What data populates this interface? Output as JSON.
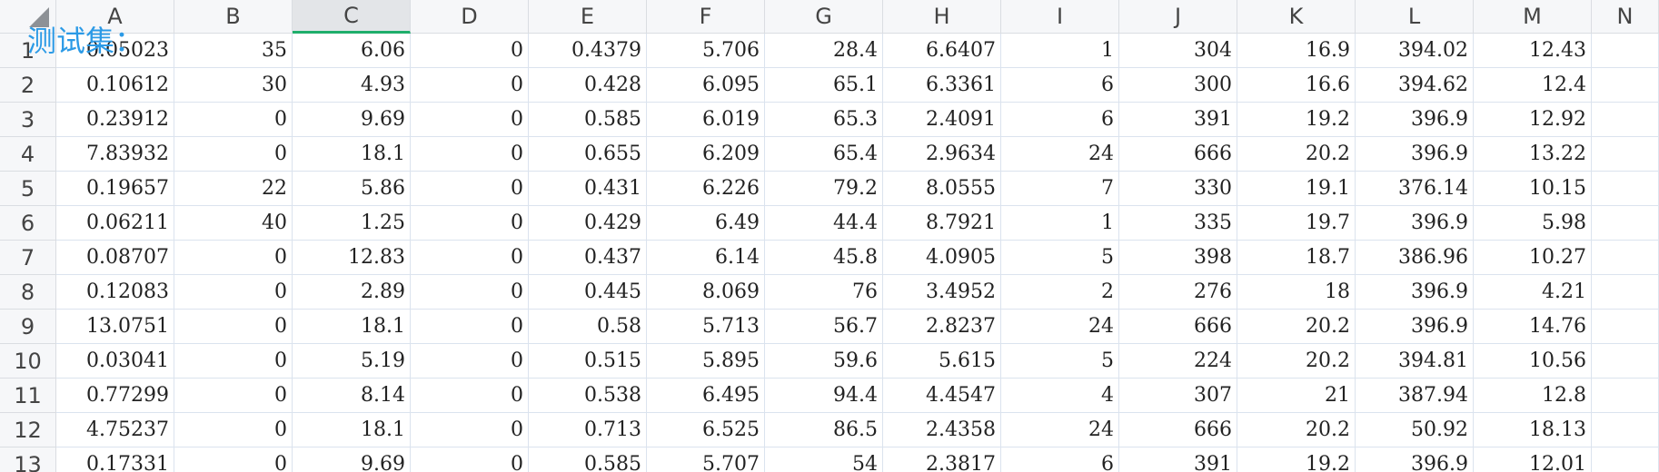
{
  "overlay_title": "测试集：",
  "columns": [
    "A",
    "B",
    "C",
    "D",
    "E",
    "F",
    "G",
    "H",
    "I",
    "J",
    "K",
    "L",
    "M",
    "N"
  ],
  "selected_column": "C",
  "rows": [
    {
      "row": "1",
      "cells": [
        "0.05023",
        "35",
        "6.06",
        "0",
        "0.4379",
        "5.706",
        "28.4",
        "6.6407",
        "1",
        "304",
        "16.9",
        "394.02",
        "12.43",
        ""
      ]
    },
    {
      "row": "2",
      "cells": [
        "0.10612",
        "30",
        "4.93",
        "0",
        "0.428",
        "6.095",
        "65.1",
        "6.3361",
        "6",
        "300",
        "16.6",
        "394.62",
        "12.4",
        ""
      ]
    },
    {
      "row": "3",
      "cells": [
        "0.23912",
        "0",
        "9.69",
        "0",
        "0.585",
        "6.019",
        "65.3",
        "2.4091",
        "6",
        "391",
        "19.2",
        "396.9",
        "12.92",
        ""
      ]
    },
    {
      "row": "4",
      "cells": [
        "7.83932",
        "0",
        "18.1",
        "0",
        "0.655",
        "6.209",
        "65.4",
        "2.9634",
        "24",
        "666",
        "20.2",
        "396.9",
        "13.22",
        ""
      ]
    },
    {
      "row": "5",
      "cells": [
        "0.19657",
        "22",
        "5.86",
        "0",
        "0.431",
        "6.226",
        "79.2",
        "8.0555",
        "7",
        "330",
        "19.1",
        "376.14",
        "10.15",
        ""
      ]
    },
    {
      "row": "6",
      "cells": [
        "0.06211",
        "40",
        "1.25",
        "0",
        "0.429",
        "6.49",
        "44.4",
        "8.7921",
        "1",
        "335",
        "19.7",
        "396.9",
        "5.98",
        ""
      ]
    },
    {
      "row": "7",
      "cells": [
        "0.08707",
        "0",
        "12.83",
        "0",
        "0.437",
        "6.14",
        "45.8",
        "4.0905",
        "5",
        "398",
        "18.7",
        "386.96",
        "10.27",
        ""
      ]
    },
    {
      "row": "8",
      "cells": [
        "0.12083",
        "0",
        "2.89",
        "0",
        "0.445",
        "8.069",
        "76",
        "3.4952",
        "2",
        "276",
        "18",
        "396.9",
        "4.21",
        ""
      ]
    },
    {
      "row": "9",
      "cells": [
        "13.0751",
        "0",
        "18.1",
        "0",
        "0.58",
        "5.713",
        "56.7",
        "2.8237",
        "24",
        "666",
        "20.2",
        "396.9",
        "14.76",
        ""
      ]
    },
    {
      "row": "10",
      "cells": [
        "0.03041",
        "0",
        "5.19",
        "0",
        "0.515",
        "5.895",
        "59.6",
        "5.615",
        "5",
        "224",
        "20.2",
        "394.81",
        "10.56",
        ""
      ]
    },
    {
      "row": "11",
      "cells": [
        "0.77299",
        "0",
        "8.14",
        "0",
        "0.538",
        "6.495",
        "94.4",
        "4.4547",
        "4",
        "307",
        "21",
        "387.94",
        "12.8",
        ""
      ]
    },
    {
      "row": "12",
      "cells": [
        "4.75237",
        "0",
        "18.1",
        "0",
        "0.713",
        "6.525",
        "86.5",
        "2.4358",
        "24",
        "666",
        "20.2",
        "50.92",
        "18.13",
        ""
      ]
    },
    {
      "row": "13",
      "cells": [
        "0.17331",
        "0",
        "9.69",
        "0",
        "0.585",
        "5.707",
        "54",
        "2.3817",
        "6",
        "391",
        "19.2",
        "396.9",
        "12.01",
        ""
      ]
    }
  ]
}
